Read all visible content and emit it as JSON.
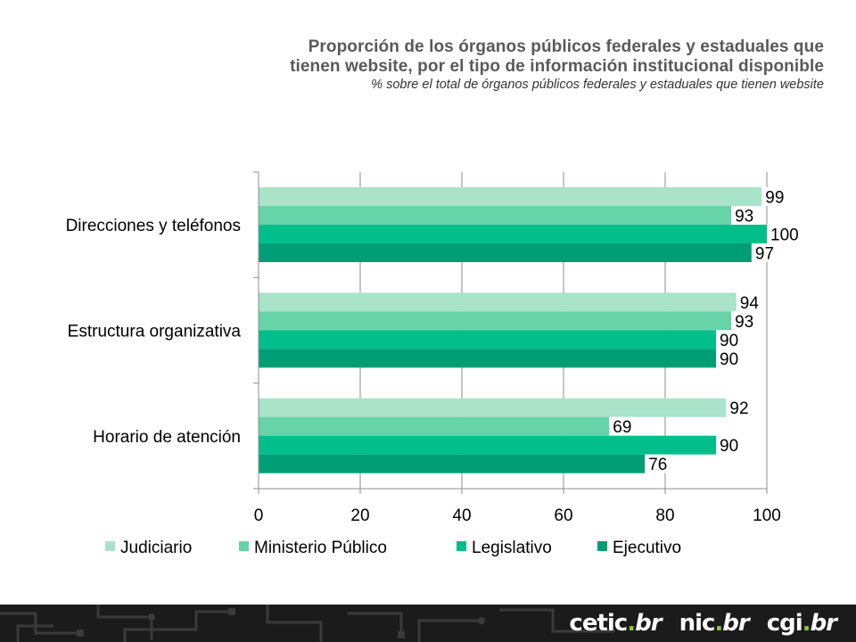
{
  "title_lines": [
    "Proporción de los órganos públicos federales y estaduales que",
    "tienen website, por el tipo de información institucional disponible"
  ],
  "subtitle": "% sobre el total de órganos públicos federales y estaduales que tienen website",
  "chart_data": {
    "type": "bar",
    "orientation": "horizontal",
    "categories": [
      "Direcciones y teléfonos",
      "Estructura organizativa",
      "Horario de atención"
    ],
    "series": [
      {
        "name": "Judiciario",
        "color": "#a9e3c9",
        "values": [
          99,
          94,
          92
        ]
      },
      {
        "name": "Ministerio Público",
        "color": "#66d3a8",
        "values": [
          93,
          93,
          69
        ]
      },
      {
        "name": "Legislativo",
        "color": "#00be8a",
        "values": [
          100,
          90,
          90
        ]
      },
      {
        "name": "Ejecutivo",
        "color": "#009e75",
        "values": [
          97,
          90,
          76
        ]
      }
    ],
    "xlim": [
      0,
      100
    ],
    "xticks": [
      "0",
      "20",
      "40",
      "60",
      "80",
      "100"
    ],
    "grid": true,
    "legend": "bottom"
  },
  "footer": {
    "logos": [
      {
        "name": "cetic",
        "text": "cetic",
        "tld": "br"
      },
      {
        "name": "nic",
        "text": "nic",
        "tld": "br"
      },
      {
        "name": "cgi",
        "text": "cgi",
        "tld": "br"
      }
    ]
  }
}
